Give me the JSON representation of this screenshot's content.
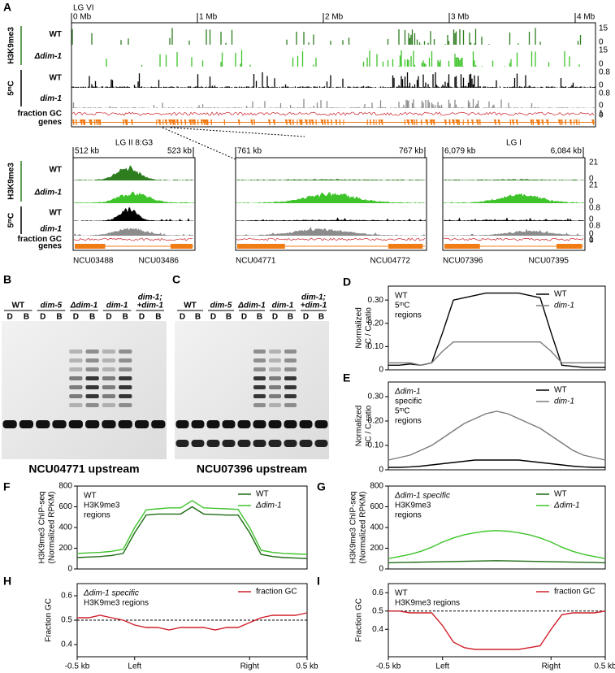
{
  "panel_A": {
    "label": "A",
    "chromosome": "LG VI",
    "scale": [
      "0 Mb",
      "1 Mb",
      "2 Mb",
      "3 Mb",
      "4 Mb"
    ],
    "groups": [
      "H3K9me3",
      "5ᵐC"
    ],
    "tracks": [
      {
        "name": "WT",
        "color": "#2e7d1f",
        "top": 15,
        "bottom": 0
      },
      {
        "name": "Δdim-1",
        "color": "#3ec42a",
        "top": 15,
        "bottom": 0
      },
      {
        "name": "WT",
        "color": "#000000",
        "top": 0.8,
        "bottom": 0
      },
      {
        "name": "dim-1",
        "color": "#8c8c8c",
        "top": 0.8,
        "bottom": 0
      },
      {
        "name": "fraction GC",
        "color": "#c8202a",
        "top": 1,
        "bottom": 0
      },
      {
        "name": "genes",
        "color": "#f07c16"
      }
    ]
  },
  "zoom": {
    "groups": [
      "H3K9me3",
      "5ᵐC"
    ],
    "tracks": [
      {
        "name": "WT",
        "color": "#2e7d1f",
        "top": 21,
        "bottom": 0
      },
      {
        "name": "Δdim-1",
        "color": "#3ec42a",
        "top": 21,
        "bottom": 0
      },
      {
        "name": "WT",
        "color": "#000000",
        "top": 0.8,
        "bottom": 0
      },
      {
        "name": "dim-1",
        "color": "#8c8c8c",
        "top": 0.8,
        "bottom": 0
      },
      {
        "name": "fraction GC",
        "color": "#c8202a",
        "top": 1,
        "bottom": 0
      },
      {
        "name": "genes",
        "color": "#f07c16"
      }
    ],
    "regions": [
      {
        "title": "LG II 8:G3",
        "start": "512 kb",
        "end": "523 kb",
        "genes": [
          "NCU03488",
          "NCU03486"
        ]
      },
      {
        "start": "761 kb",
        "end": "767 kb",
        "genes": [
          "NCU04771",
          "NCU04772"
        ]
      },
      {
        "title": "LG I",
        "start": "6,079 kb",
        "end": "6,084 kb",
        "genes": [
          "NCU07396",
          "NCU07395"
        ]
      }
    ]
  },
  "gels": [
    {
      "label": "B",
      "lanes": [
        [
          "WT"
        ],
        [
          "dim-5"
        ],
        [
          "Δdim-1"
        ],
        [
          "dim-1"
        ],
        [
          "dim-1;",
          "+dim-1"
        ]
      ],
      "digests": [
        "D",
        "B"
      ],
      "caption": "NCU04771 upstream"
    },
    {
      "label": "C",
      "lanes": [
        [
          "WT"
        ],
        [
          "dim-5"
        ],
        [
          "Δdim-1"
        ],
        [
          "dim-1"
        ],
        [
          "dim-1;",
          "+dim-1"
        ]
      ],
      "digests": [
        "D",
        "B"
      ],
      "caption": "NCU07396 upstream"
    }
  ],
  "chart_data": [
    {
      "type": "line",
      "label": "D",
      "ylabel": [
        "Normalized",
        "ᵐC / C ratio"
      ],
      "inset": [
        "WT",
        "5ᵐC",
        "regions"
      ],
      "x": [
        0,
        5,
        10,
        15,
        20,
        25,
        30,
        35,
        40,
        45,
        50,
        55,
        60,
        65,
        70,
        75,
        80,
        85,
        90,
        95,
        100
      ],
      "xlim": [
        0,
        100
      ],
      "ylim": [
        0,
        0.36
      ],
      "yticks": [
        0,
        {
          "value": 0.1,
          "label": "0.10"
        },
        {
          "value": 0.2,
          "label": "0.20"
        },
        {
          "value": 0.3,
          "label": "0.30"
        }
      ],
      "legend": "upper right",
      "series": [
        {
          "name": "WT",
          "color": "#000000",
          "values": [
            0.02,
            0.02,
            0.025,
            0.02,
            0.03,
            0.16,
            0.3,
            0.31,
            0.32,
            0.33,
            0.33,
            0.33,
            0.33,
            0.32,
            0.31,
            0.16,
            0.02,
            0.015,
            0.01,
            0.01,
            0.01
          ]
        },
        {
          "name": "dim-1",
          "color": "#7a7a7a",
          "values": [
            0.03,
            0.03,
            0.03,
            0.02,
            0.03,
            0.08,
            0.12,
            0.12,
            0.12,
            0.12,
            0.12,
            0.12,
            0.12,
            0.12,
            0.12,
            0.08,
            0.03,
            0.03,
            0.03,
            0.03,
            0.03
          ]
        }
      ]
    },
    {
      "type": "line",
      "label": "E",
      "ylabel": [
        "Normalized",
        "ᵐC / C ratio"
      ],
      "inset": [
        "Δdim-1",
        "specific",
        "5ᵐC",
        "regions"
      ],
      "x": [
        0,
        5,
        10,
        15,
        20,
        25,
        30,
        35,
        40,
        45,
        50,
        55,
        60,
        65,
        70,
        75,
        80,
        85,
        90,
        95,
        100
      ],
      "xlim": [
        0,
        100
      ],
      "ylim": [
        0,
        0.36
      ],
      "yticks": [
        0,
        {
          "value": 0.1,
          "label": "0.10"
        },
        {
          "value": 0.2,
          "label": "0.20"
        },
        {
          "value": 0.3,
          "label": "0.30"
        }
      ],
      "legend": "upper right",
      "series": [
        {
          "name": "WT",
          "color": "#000000",
          "values": [
            0.01,
            0.01,
            0.012,
            0.015,
            0.02,
            0.025,
            0.03,
            0.035,
            0.04,
            0.04,
            0.04,
            0.04,
            0.04,
            0.035,
            0.03,
            0.025,
            0.02,
            0.015,
            0.012,
            0.01,
            0.01
          ]
        },
        {
          "name": "dim-1",
          "color": "#7a7a7a",
          "values": [
            0.04,
            0.05,
            0.06,
            0.08,
            0.1,
            0.13,
            0.16,
            0.19,
            0.21,
            0.23,
            0.24,
            0.23,
            0.21,
            0.19,
            0.17,
            0.14,
            0.11,
            0.08,
            0.06,
            0.05,
            0.04
          ]
        }
      ]
    },
    {
      "type": "line",
      "label": "F",
      "ylabel": [
        "H3K9me3 ChIP-seq",
        "(Normalized RPKM)"
      ],
      "inset": [
        "WT",
        "H3K9me3",
        "regions"
      ],
      "x": [
        0,
        5,
        10,
        15,
        20,
        25,
        30,
        35,
        40,
        45,
        50,
        55,
        60,
        65,
        70,
        75,
        80,
        85,
        90,
        95,
        100
      ],
      "xlim": [
        0,
        100
      ],
      "ylim": [
        0,
        800
      ],
      "yticks": [
        0,
        200,
        400,
        600,
        800
      ],
      "legend": "upper right",
      "series": [
        {
          "name": "WT",
          "color": "#1e6b14",
          "values": [
            110,
            115,
            120,
            130,
            150,
            350,
            520,
            530,
            530,
            530,
            600,
            530,
            525,
            520,
            520,
            350,
            140,
            120,
            110,
            105,
            100
          ]
        },
        {
          "name": "Δdim-1",
          "color": "#3ec42a",
          "values": [
            150,
            155,
            160,
            170,
            190,
            400,
            570,
            580,
            590,
            590,
            660,
            590,
            585,
            580,
            575,
            400,
            180,
            160,
            150,
            145,
            140
          ]
        }
      ]
    },
    {
      "type": "line",
      "label": "G",
      "ylabel": [
        "H3K9me3 ChIP-seq",
        "(Normalized RPKM)"
      ],
      "inset": [
        "Δdim-1 specific",
        "H3K9me3",
        "regions"
      ],
      "x": [
        0,
        5,
        10,
        15,
        20,
        25,
        30,
        35,
        40,
        45,
        50,
        55,
        60,
        65,
        70,
        75,
        80,
        85,
        90,
        95,
        100
      ],
      "xlim": [
        0,
        100
      ],
      "ylim": [
        0,
        800
      ],
      "yticks": [
        0,
        200,
        400,
        600,
        800
      ],
      "legend": "upper right",
      "series": [
        {
          "name": "WT",
          "color": "#1e6b14",
          "values": [
            60,
            62,
            64,
            66,
            68,
            70,
            72,
            74,
            76,
            78,
            80,
            78,
            76,
            74,
            72,
            70,
            68,
            66,
            64,
            62,
            60
          ]
        },
        {
          "name": "Δdim-1",
          "color": "#3ec42a",
          "values": [
            100,
            120,
            140,
            170,
            210,
            260,
            300,
            330,
            350,
            365,
            370,
            365,
            350,
            330,
            300,
            260,
            210,
            170,
            140,
            120,
            100
          ]
        }
      ]
    },
    {
      "type": "line",
      "label": "H",
      "ylabel": [
        "Fraction GC"
      ],
      "inset": [
        "Δdim-1 specific",
        "H3K9me3 regions"
      ],
      "x": [
        0,
        5,
        10,
        15,
        20,
        25,
        30,
        35,
        40,
        45,
        50,
        55,
        60,
        65,
        70,
        75,
        80,
        85,
        90,
        95,
        100
      ],
      "xlim": [
        0,
        100
      ],
      "xticks": [
        {
          "value": 0,
          "label": "-0.5 kb"
        },
        {
          "value": 25,
          "label": "Left"
        },
        {
          "value": 75,
          "label": "Right"
        },
        {
          "value": 100,
          "label": "0.5 kb"
        }
      ],
      "ylim": [
        0.35,
        0.65
      ],
      "yticks": [
        0.4,
        0.5,
        0.6
      ],
      "reference_line": 0.5,
      "legend": "upper right",
      "series": [
        {
          "name": "fraction GC",
          "color": "#d0202a",
          "values": [
            0.51,
            0.51,
            0.52,
            0.51,
            0.5,
            0.48,
            0.47,
            0.47,
            0.46,
            0.47,
            0.47,
            0.47,
            0.46,
            0.47,
            0.47,
            0.49,
            0.51,
            0.52,
            0.52,
            0.52,
            0.53
          ]
        }
      ]
    },
    {
      "type": "line",
      "label": "I",
      "ylabel": [
        "Fraction GC"
      ],
      "inset": [
        "WT",
        "H3K9me3 regions"
      ],
      "x": [
        0,
        5,
        10,
        15,
        20,
        25,
        30,
        35,
        40,
        45,
        50,
        55,
        60,
        65,
        70,
        75,
        80,
        85,
        90,
        95,
        100
      ],
      "xlim": [
        0,
        100
      ],
      "xticks": [
        {
          "value": 0,
          "label": "-0.5 kb"
        },
        {
          "value": 25,
          "label": "Left"
        },
        {
          "value": 75,
          "label": "Right"
        },
        {
          "value": 100,
          "label": "0.5 kb"
        }
      ],
      "ylim": [
        0.25,
        0.65
      ],
      "yticks": [
        0.4,
        0.5,
        0.6
      ],
      "reference_line": 0.5,
      "legend": "upper right",
      "series": [
        {
          "name": "fraction GC",
          "color": "#d0202a",
          "values": [
            0.5,
            0.5,
            0.49,
            0.49,
            0.49,
            0.42,
            0.33,
            0.3,
            0.29,
            0.29,
            0.29,
            0.29,
            0.29,
            0.3,
            0.31,
            0.4,
            0.48,
            0.49,
            0.49,
            0.49,
            0.5
          ]
        }
      ]
    }
  ]
}
